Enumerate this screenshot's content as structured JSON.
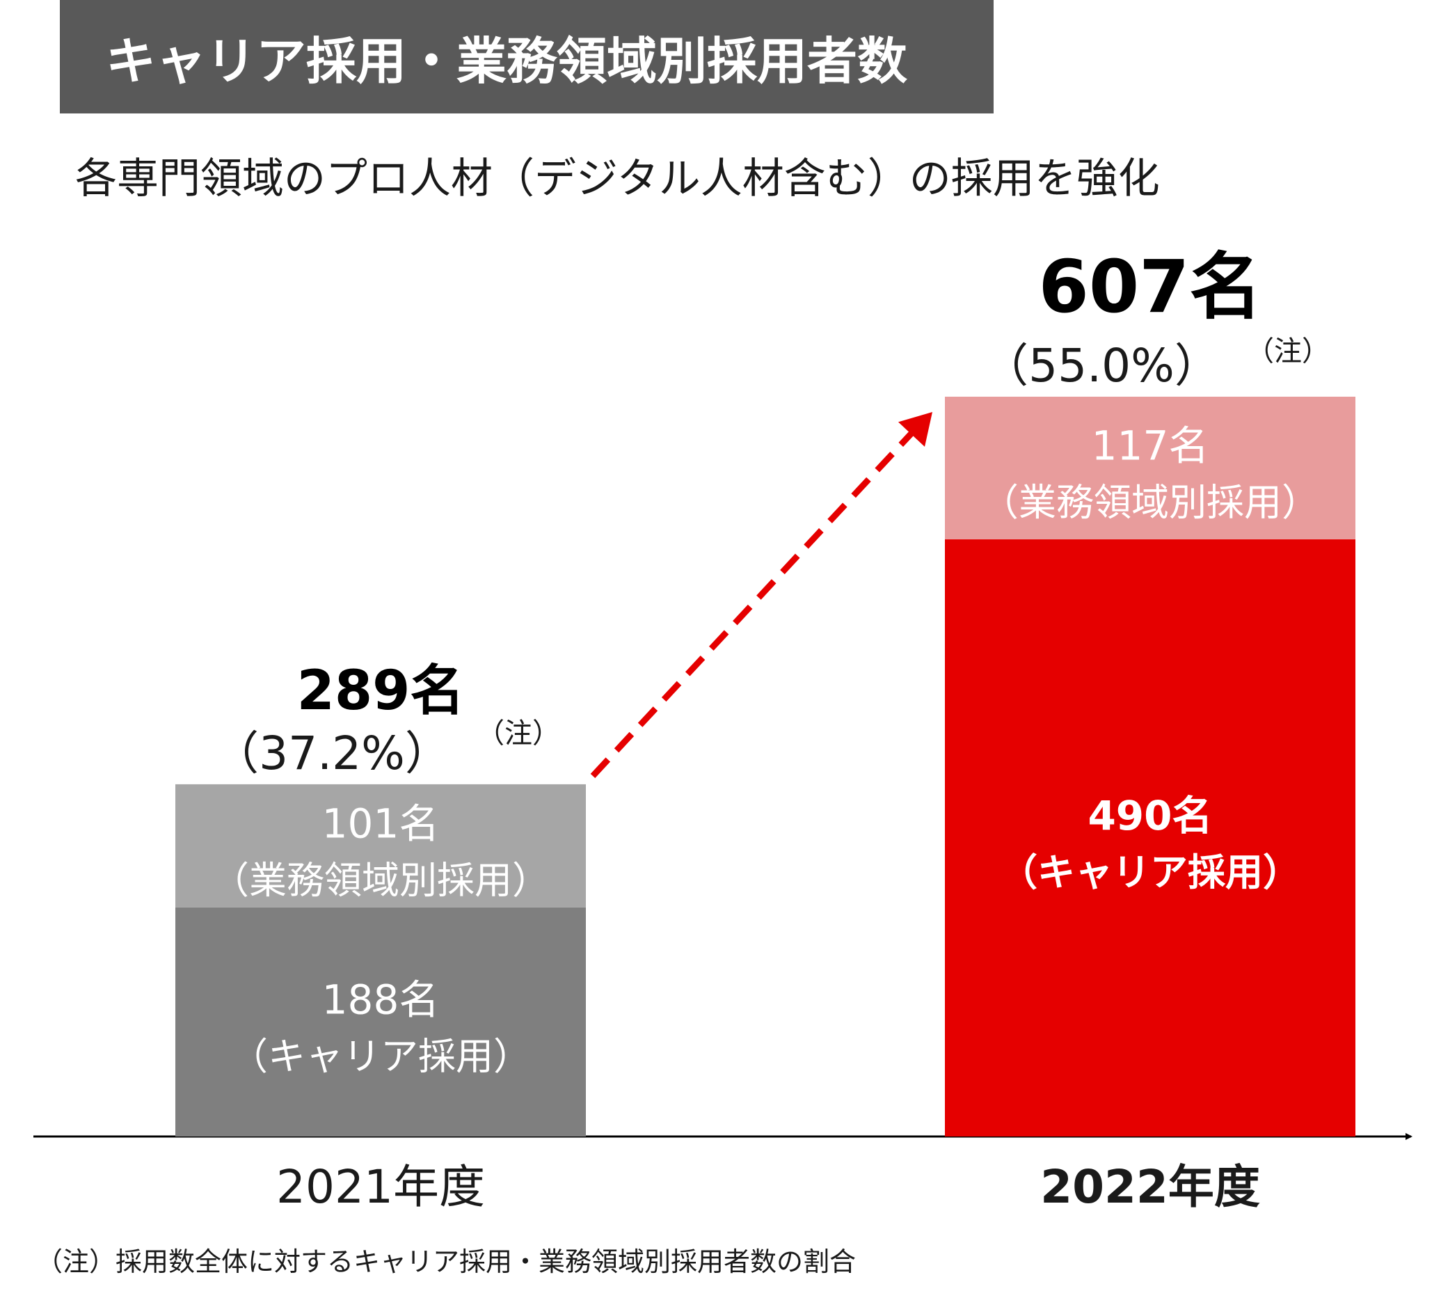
{
  "title": "キャリア採用・業務領域別採用者数",
  "subtitle": "各専門領域のプロ人材（デジタル人材含む）の採用を強化",
  "footnote": "（注）採用数全体に対するキャリア採用・業務領域別採用者数の割合",
  "colors": {
    "title_bg": "#595959",
    "y2021_career": "#7f7f7f",
    "y2021_domain": "#a6a6a6",
    "y2022_career": "#e50000",
    "y2022_domain": "#e89c9c",
    "arrow": "#e50000"
  },
  "chart_data": {
    "type": "bar",
    "stacked": true,
    "categories": [
      "2021年度",
      "2022年度"
    ],
    "series": [
      {
        "name": "キャリア採用",
        "values": [
          188,
          490
        ]
      },
      {
        "name": "業務領域別採用",
        "values": [
          101,
          117
        ]
      }
    ],
    "totals": [
      289,
      607
    ],
    "ylim": [
      0,
      607
    ],
    "bars": [
      {
        "category": "2021年度",
        "total_label": "289名",
        "pct_label": "（37.2%）",
        "note_mark": "（注）",
        "segments": [
          {
            "series": "キャリア採用",
            "value": 188,
            "value_label": "188名",
            "name_label": "（キャリア採用）"
          },
          {
            "series": "業務領域別採用",
            "value": 101,
            "value_label": "101名",
            "name_label": "（業務領域別採用）"
          }
        ]
      },
      {
        "category": "2022年度",
        "total_label": "607名",
        "pct_label": "（55.0%）",
        "note_mark": "（注）",
        "segments": [
          {
            "series": "キャリア採用",
            "value": 490,
            "value_label": "490名",
            "name_label": "（キャリア採用）"
          },
          {
            "series": "業務領域別採用",
            "value": 117,
            "value_label": "117名",
            "name_label": "（業務領域別採用）"
          }
        ]
      }
    ]
  }
}
